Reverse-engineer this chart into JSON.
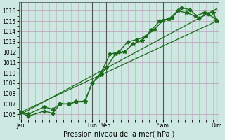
{
  "xlabel": "Pression niveau de la mer( hPa )",
  "bg_color": "#cce8e0",
  "plot_bg_color": "#cce8e0",
  "grid_color": "#c0a8c0",
  "line_color": "#1a6b1a",
  "ylim": [
    1005.5,
    1016.8
  ],
  "yticks": [
    1006,
    1007,
    1008,
    1009,
    1010,
    1011,
    1012,
    1013,
    1014,
    1015,
    1016
  ],
  "xlim": [
    -0.1,
    11.1
  ],
  "xtick_positions": [
    0,
    4,
    4.8,
    8,
    11
  ],
  "xtick_labels": [
    "Jeu",
    "Lun",
    "Ven",
    "Sam",
    "Dim"
  ],
  "vline_positions": [
    0,
    4,
    4.8,
    8,
    11
  ],
  "vline_color": "#555555",
  "series1_x": [
    0,
    0.4,
    1.3,
    1.8,
    2.2,
    2.7,
    3.1,
    3.6,
    4.0,
    4.5,
    5.0,
    5.5,
    6.0,
    6.5,
    7.0,
    7.5,
    8.0,
    8.5,
    9.0,
    9.5,
    10.0,
    10.5,
    11.0
  ],
  "series1_y": [
    1006.2,
    1005.8,
    1006.3,
    1006.1,
    1007.0,
    1007.0,
    1007.2,
    1007.3,
    1009.0,
    1010.0,
    1011.8,
    1012.0,
    1013.0,
    1013.2,
    1013.5,
    1014.2,
    1015.1,
    1015.35,
    1016.3,
    1016.1,
    1015.3,
    1015.7,
    1015.1
  ],
  "series2_x": [
    0,
    0.4,
    1.3,
    1.8,
    2.2,
    2.7,
    3.1,
    3.6,
    4.0,
    4.5,
    4.8,
    5.3,
    5.8,
    6.3,
    6.8,
    7.3,
    7.8,
    8.3,
    8.8,
    9.3,
    9.8,
    10.3,
    10.8,
    11.0
  ],
  "series2_y": [
    1006.2,
    1006.0,
    1006.7,
    1006.5,
    1007.0,
    1007.0,
    1007.2,
    1007.2,
    1009.0,
    1009.8,
    1010.5,
    1011.8,
    1012.0,
    1012.8,
    1013.1,
    1014.1,
    1015.0,
    1015.2,
    1016.0,
    1015.8,
    1015.5,
    1015.8,
    1015.8,
    1015.0
  ],
  "trend1_x": [
    0,
    11
  ],
  "trend1_y": [
    1006.2,
    1015.0
  ],
  "trend2_x": [
    0,
    11
  ],
  "trend2_y": [
    1006.0,
    1016.2
  ],
  "xlabel_fontsize": 7,
  "ytick_fontsize": 5.5,
  "xtick_fontsize": 5.5
}
